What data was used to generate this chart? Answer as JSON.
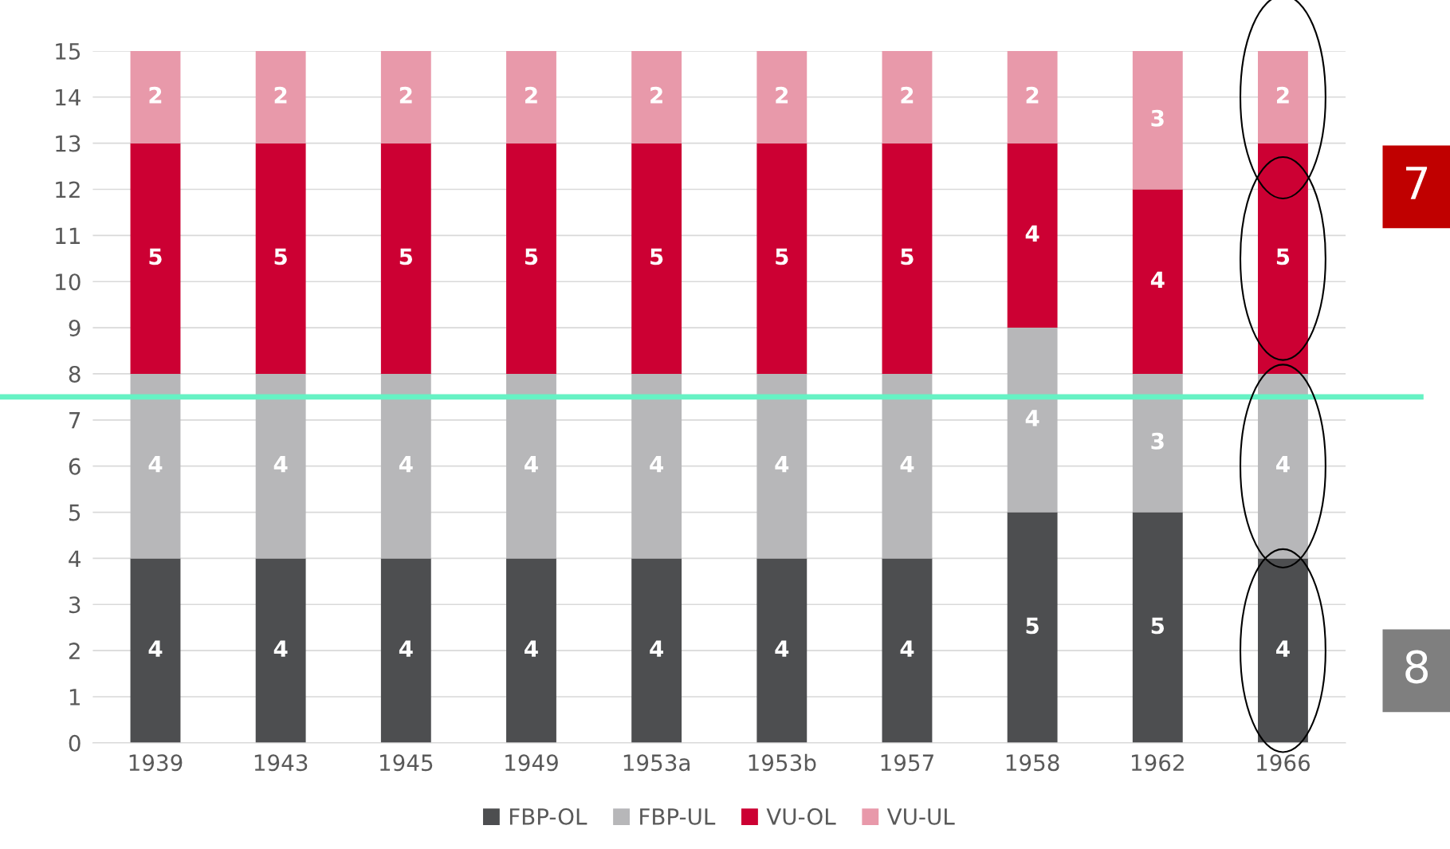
{
  "chart_data": {
    "type": "bar",
    "stacked": true,
    "categories": [
      "1939",
      "1943",
      "1945",
      "1949",
      "1953a",
      "1953b",
      "1957",
      "1958",
      "1962",
      "1966"
    ],
    "series": [
      {
        "name": "FBP-OL",
        "color": "#4d4e50",
        "values": [
          4,
          4,
          4,
          4,
          4,
          4,
          4,
          5,
          5,
          4
        ]
      },
      {
        "name": "FBP-UL",
        "color": "#b7b7b9",
        "values": [
          4,
          4,
          4,
          4,
          4,
          4,
          4,
          4,
          3,
          4
        ]
      },
      {
        "name": "VU-OL",
        "color": "#cc0033",
        "values": [
          5,
          5,
          5,
          5,
          5,
          5,
          5,
          4,
          4,
          5
        ]
      },
      {
        "name": "VU-UL",
        "color": "#e899aa",
        "values": [
          2,
          2,
          2,
          2,
          2,
          2,
          2,
          2,
          3,
          2
        ]
      }
    ],
    "ylim": [
      0,
      15
    ],
    "yticks": [
      0,
      1,
      2,
      3,
      4,
      5,
      6,
      7,
      8,
      9,
      10,
      11,
      12,
      13,
      14,
      15
    ],
    "grid": "y",
    "legend": "bottom",
    "data_labels": true,
    "ref_lines": [
      {
        "axis": "y",
        "value": 7.5,
        "label": null,
        "color": "#66f2c4"
      }
    ],
    "annotations": [
      "7",
      "8"
    ]
  }
}
